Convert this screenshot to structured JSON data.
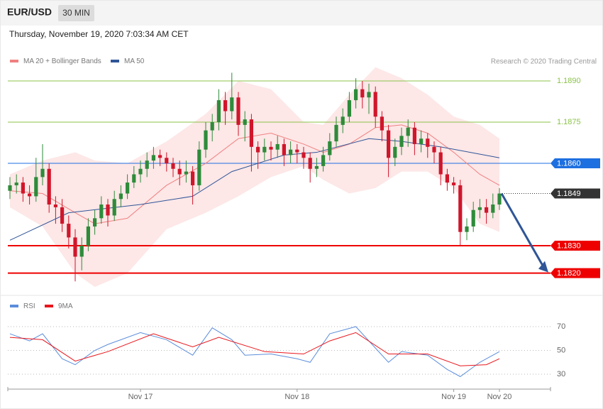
{
  "header": {
    "symbol": "EUR/USD",
    "interval": "30 MIN",
    "timestamp": "Thursday, November 19, 2020 7:03:34 AM CET"
  },
  "chart_data": [
    {
      "type": "candlestick",
      "credit": "Research © 2020 Trading Central",
      "categories": [
        null,
        null,
        null,
        null,
        null,
        null,
        null,
        null,
        null,
        null,
        null,
        null,
        null,
        null,
        null,
        null,
        null,
        null,
        null,
        null,
        "Nov 17",
        null,
        null,
        null,
        null,
        null,
        null,
        null,
        null,
        null,
        null,
        null,
        null,
        null,
        null,
        null,
        null,
        null,
        null,
        null,
        null,
        null,
        null,
        null,
        "Nov 18",
        null,
        null,
        null,
        null,
        null,
        null,
        null,
        null,
        null,
        null,
        null,
        null,
        null,
        null,
        null,
        null,
        null,
        null,
        null,
        null,
        null,
        null,
        null,
        "Nov 19",
        null,
        null,
        null,
        null,
        null,
        null,
        "Nov 20"
      ],
      "ohlc": [
        [
          1.185,
          1.1855,
          1.1847,
          1.1852
        ],
        [
          1.1852,
          1.1856,
          1.1849,
          1.1853
        ],
        [
          1.1853,
          1.1855,
          1.1846,
          1.1849
        ],
        [
          1.1849,
          1.1852,
          1.1845,
          1.1848
        ],
        [
          1.1848,
          1.1862,
          1.1846,
          1.1855
        ],
        [
          1.1855,
          1.1867,
          1.1852,
          1.1858
        ],
        [
          1.1858,
          1.186,
          1.1842,
          1.1845
        ],
        [
          1.1845,
          1.1848,
          1.1838,
          1.1844
        ],
        [
          1.1844,
          1.1847,
          1.1835,
          1.1838
        ],
        [
          1.1838,
          1.1841,
          1.1829,
          1.1833
        ],
        [
          1.1833,
          1.1836,
          1.1817,
          1.1826
        ],
        [
          1.1826,
          1.1833,
          1.1821,
          1.183
        ],
        [
          1.183,
          1.184,
          1.1828,
          1.1837
        ],
        [
          1.1837,
          1.1843,
          1.1834,
          1.184
        ],
        [
          1.184,
          1.1848,
          1.1838,
          1.1845
        ],
        [
          1.1845,
          1.1847,
          1.1837,
          1.1841
        ],
        [
          1.1841,
          1.185,
          1.1839,
          1.1847
        ],
        [
          1.1847,
          1.1852,
          1.1844,
          1.1849
        ],
        [
          1.1849,
          1.1856,
          1.1847,
          1.1853
        ],
        [
          1.1853,
          1.1859,
          1.1851,
          1.1856
        ],
        [
          1.1856,
          1.1861,
          1.1853,
          1.1858
        ],
        [
          1.1858,
          1.1864,
          1.1855,
          1.1861
        ],
        [
          1.1861,
          1.1866,
          1.1858,
          1.1863
        ],
        [
          1.1863,
          1.1865,
          1.1859,
          1.1862
        ],
        [
          1.1862,
          1.1864,
          1.1857,
          1.186
        ],
        [
          1.186,
          1.1862,
          1.1855,
          1.1858
        ],
        [
          1.1858,
          1.1861,
          1.1852,
          1.1856
        ],
        [
          1.1856,
          1.1861,
          1.1853,
          1.1857
        ],
        [
          1.1857,
          1.1859,
          1.1845,
          1.1852
        ],
        [
          1.1852,
          1.1868,
          1.185,
          1.1865
        ],
        [
          1.1865,
          1.1875,
          1.1862,
          1.1872
        ],
        [
          1.1872,
          1.1878,
          1.1868,
          1.1875
        ],
        [
          1.1875,
          1.1887,
          1.1872,
          1.1883
        ],
        [
          1.1883,
          1.1886,
          1.1874,
          1.1879
        ],
        [
          1.1879,
          1.1893,
          1.1876,
          1.1884
        ],
        [
          1.1884,
          1.1886,
          1.187,
          1.1874
        ],
        [
          1.1874,
          1.1879,
          1.1868,
          1.1876
        ],
        [
          1.1876,
          1.1878,
          1.1857,
          1.1866
        ],
        [
          1.1866,
          1.1868,
          1.1858,
          1.1864
        ],
        [
          1.1864,
          1.1869,
          1.1861,
          1.1866
        ],
        [
          1.1866,
          1.1868,
          1.1861,
          1.1865
        ],
        [
          1.1865,
          1.187,
          1.1862,
          1.1867
        ],
        [
          1.1867,
          1.1869,
          1.1859,
          1.1863
        ],
        [
          1.1863,
          1.1868,
          1.186,
          1.1865
        ],
        [
          1.1865,
          1.1867,
          1.186,
          1.1864
        ],
        [
          1.1864,
          1.1866,
          1.1858,
          1.1862
        ],
        [
          1.1862,
          1.1864,
          1.1853,
          1.1858
        ],
        [
          1.1858,
          1.1862,
          1.1855,
          1.1859
        ],
        [
          1.1859,
          1.1866,
          1.1857,
          1.1863
        ],
        [
          1.1863,
          1.1871,
          1.1861,
          1.1868
        ],
        [
          1.1868,
          1.1877,
          1.1866,
          1.1874
        ],
        [
          1.1874,
          1.188,
          1.1871,
          1.1877
        ],
        [
          1.1877,
          1.1886,
          1.1875,
          1.1883
        ],
        [
          1.1883,
          1.1891,
          1.188,
          1.1887
        ],
        [
          1.1887,
          1.189,
          1.188,
          1.1884
        ],
        [
          1.1884,
          1.1889,
          1.1878,
          1.1886
        ],
        [
          1.1886,
          1.1888,
          1.1873,
          1.1877
        ],
        [
          1.1877,
          1.1879,
          1.1868,
          1.1872
        ],
        [
          1.1872,
          1.1874,
          1.1855,
          1.1862
        ],
        [
          1.1862,
          1.1869,
          1.1859,
          1.1866
        ],
        [
          1.1866,
          1.1873,
          1.1863,
          1.187
        ],
        [
          1.187,
          1.1876,
          1.1866,
          1.1873
        ],
        [
          1.1873,
          1.1875,
          1.1863,
          1.1867
        ],
        [
          1.1867,
          1.1872,
          1.1864,
          1.1869
        ],
        [
          1.1869,
          1.1871,
          1.1862,
          1.1866
        ],
        [
          1.1866,
          1.1868,
          1.186,
          1.1864
        ],
        [
          1.1864,
          1.1866,
          1.1852,
          1.1856
        ],
        [
          1.1856,
          1.1858,
          1.185,
          1.1853
        ],
        [
          1.1853,
          1.1855,
          1.1849,
          1.1852
        ],
        [
          1.1852,
          1.1854,
          1.183,
          1.1835
        ],
        [
          1.1835,
          1.184,
          1.1832,
          1.1837
        ],
        [
          1.1837,
          1.1846,
          1.1835,
          1.1843
        ],
        [
          1.1843,
          1.1847,
          1.184,
          1.1844
        ],
        [
          1.1844,
          1.1847,
          1.1838,
          1.1842
        ],
        [
          1.1842,
          1.1849,
          1.184,
          1.1845
        ],
        [
          1.1845,
          1.1851,
          1.1843,
          1.1849
        ]
      ],
      "up_color": "#2e8b3a",
      "down_color": "#d0162b",
      "ylim": [
        1.1812,
        1.1895
      ],
      "overlays": [
        {
          "name": "MA 20 + Bollinger Bands",
          "color": "#f08080",
          "band_color": "#fde3e3",
          "x": [
            0,
            5,
            10,
            13,
            18,
            24,
            30,
            35,
            40,
            45,
            48,
            52,
            56,
            60,
            64,
            68,
            72,
            75
          ],
          "values": [
            1.185,
            1.1849,
            1.1842,
            1.1838,
            1.184,
            1.1852,
            1.186,
            1.1869,
            1.1871,
            1.1867,
            1.1864,
            1.1867,
            1.1873,
            1.1874,
            1.1871,
            1.1864,
            1.1856,
            1.1852
          ],
          "upper": [
            1.1856,
            1.1861,
            1.1864,
            1.1861,
            1.186,
            1.1868,
            1.1878,
            1.189,
            1.1887,
            1.1875,
            1.1874,
            1.1885,
            1.1895,
            1.1891,
            1.1885,
            1.1877,
            1.1874,
            1.1869
          ],
          "lower": [
            1.1844,
            1.1837,
            1.182,
            1.1815,
            1.182,
            1.1836,
            1.1842,
            1.1848,
            1.1855,
            1.1859,
            1.1854,
            1.1849,
            1.1851,
            1.1857,
            1.1857,
            1.1851,
            1.1838,
            1.1835
          ]
        },
        {
          "name": "MA 50",
          "color": "#2f5597",
          "x": [
            0,
            9,
            20,
            28,
            34,
            42,
            47,
            55,
            60,
            66,
            75
          ],
          "values": [
            1.1832,
            1.1842,
            1.1845,
            1.1848,
            1.1857,
            1.1863,
            1.1864,
            1.1869,
            1.1868,
            1.1866,
            1.1862
          ]
        }
      ],
      "levels": [
        {
          "value": 1.189,
          "label": "1.1890",
          "color": "#8bc34a",
          "style": "solid",
          "tag": false
        },
        {
          "value": 1.1875,
          "color": "#8bc34a",
          "style": "solid",
          "tag": false
        },
        {
          "value": 1.186,
          "label": "1.1860",
          "color": "#1e6fe0",
          "style": "solid",
          "tag": true
        },
        {
          "value": 1.1849,
          "color": "#333333",
          "style": "dotted",
          "tag": true
        },
        {
          "value": 1.183,
          "label": "1.1830",
          "color": "#ee0000",
          "style": "thick",
          "tag": true
        },
        {
          "value": 1.182,
          "label": "1.1820",
          "color": "#ee0000",
          "style": "thick",
          "tag": true
        }
      ],
      "arrow_color": "#2f5597"
    },
    {
      "type": "line",
      "series": [
        {
          "name": "RSI",
          "color": "#5b8ddb",
          "x": [
            0,
            3,
            5,
            8,
            10,
            13,
            15,
            20,
            24,
            28,
            31,
            34,
            36,
            40,
            44,
            46,
            49,
            53,
            55,
            58,
            60,
            64,
            67,
            69,
            72,
            75
          ],
          "values": [
            64,
            58,
            64,
            43,
            38,
            50,
            55,
            65,
            59,
            46,
            69,
            59,
            46,
            47,
            43,
            40,
            64,
            70,
            58,
            40,
            49,
            46,
            34,
            28,
            40,
            49
          ]
        },
        {
          "name": "9MA",
          "color": "#e8161c",
          "x": [
            0,
            5,
            10,
            15,
            22,
            28,
            32,
            39,
            45,
            49,
            53,
            58,
            64,
            69,
            73,
            75
          ],
          "values": [
            61,
            59,
            41,
            49,
            64,
            53,
            61,
            49,
            47,
            58,
            65,
            47,
            47,
            37,
            38,
            43
          ]
        }
      ],
      "ylim": [
        16,
        86
      ],
      "yticks": [
        70,
        50,
        30
      ],
      "grid": true
    }
  ]
}
